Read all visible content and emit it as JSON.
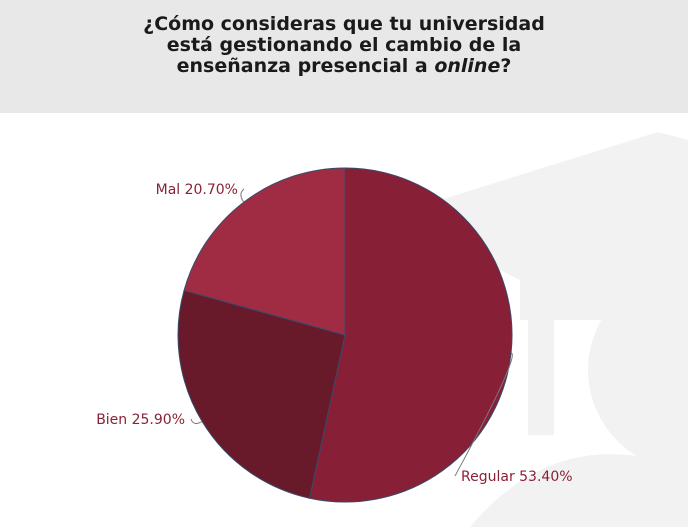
{
  "header": {
    "title_line1": "¿Cómo consideras que tu universidad",
    "title_line2": "está gestionando el cambio de la",
    "title_line3_prefix": "enseñanza presencial a ",
    "title_line3_emph": "online",
    "title_line3_suffix": "?"
  },
  "chart_data": {
    "type": "pie",
    "title": "¿Cómo consideras que tu universidad está gestionando el cambio de la enseñanza presencial a online?",
    "slices": [
      {
        "label": "Regular",
        "value": 53.4,
        "display": "Regular 53.40%",
        "color": "#871f36"
      },
      {
        "label": "Bien",
        "value": 25.9,
        "display": "Bien 25.90%",
        "color": "#681a2a"
      },
      {
        "label": "Mal",
        "value": 20.7,
        "display": "Mal 20.70%",
        "color": "#a02c44"
      }
    ],
    "start_angle_deg": 0,
    "direction": "clockwise",
    "edge_color": "#3a4a6a"
  }
}
